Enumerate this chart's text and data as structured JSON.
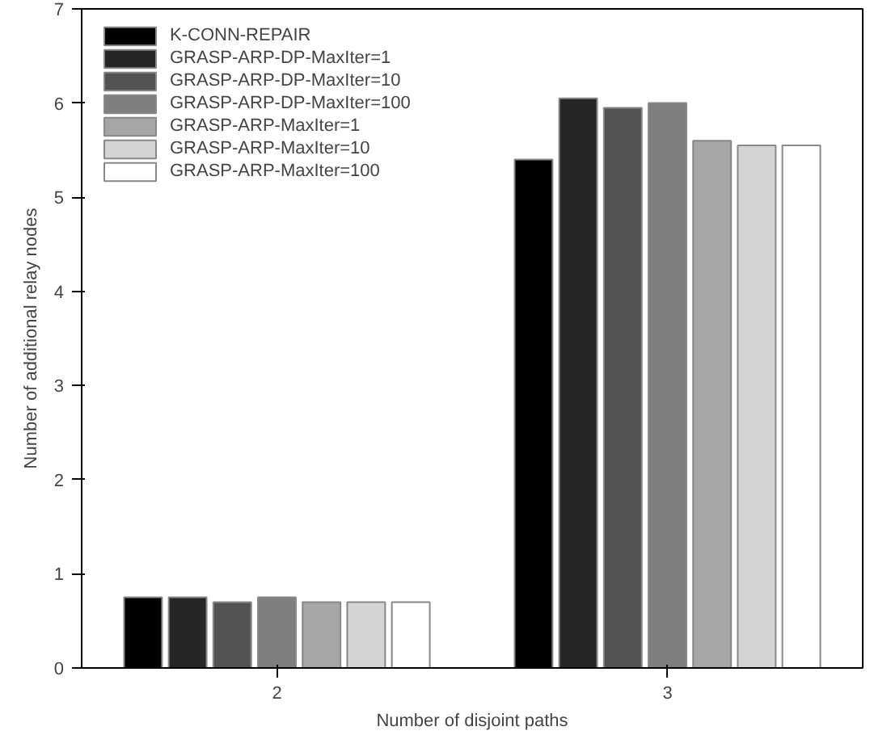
{
  "chart_data": {
    "type": "bar",
    "xlabel": "Number of disjoint paths",
    "ylabel": "Number of additional relay nodes",
    "categories": [
      "2",
      "3"
    ],
    "ylim": [
      0,
      7
    ],
    "yticks": [
      0,
      1,
      2,
      3,
      4,
      5,
      6,
      7
    ],
    "grid": false,
    "legend": "top left",
    "series": [
      {
        "name": "K-CONN-REPAIR",
        "color": "#000000",
        "values": [
          0.75,
          5.4
        ]
      },
      {
        "name": "GRASP-ARP-DP-MaxIter=1",
        "color": "#262626",
        "values": [
          0.75,
          6.05
        ]
      },
      {
        "name": "GRASP-ARP-DP-MaxIter=10",
        "color": "#525252",
        "values": [
          0.7,
          5.95
        ]
      },
      {
        "name": "GRASP-ARP-DP-MaxIter=100",
        "color": "#7f7f7f",
        "values": [
          0.75,
          6.0
        ]
      },
      {
        "name": "GRASP-ARP-MaxIter=1",
        "color": "#a6a6a6",
        "values": [
          0.7,
          5.6
        ]
      },
      {
        "name": "GRASP-ARP-MaxIter=10",
        "color": "#d4d4d4",
        "values": [
          0.7,
          5.55
        ]
      },
      {
        "name": "GRASP-ARP-MaxIter=100",
        "color": "#ffffff",
        "values": [
          0.7,
          5.55
        ]
      }
    ]
  }
}
